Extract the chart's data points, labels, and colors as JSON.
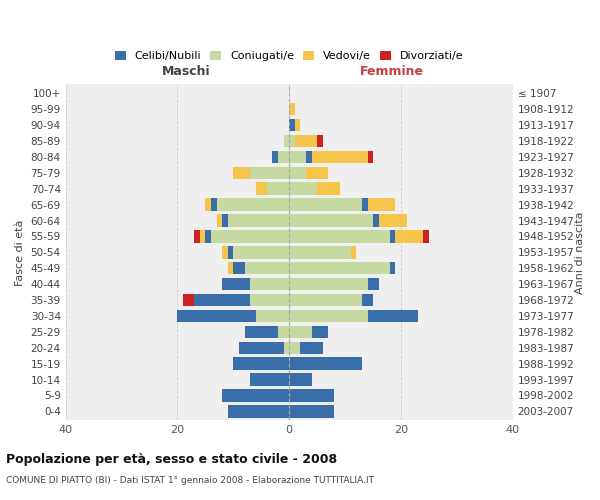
{
  "age_groups": [
    "0-4",
    "5-9",
    "10-14",
    "15-19",
    "20-24",
    "25-29",
    "30-34",
    "35-39",
    "40-44",
    "45-49",
    "50-54",
    "55-59",
    "60-64",
    "65-69",
    "70-74",
    "75-79",
    "80-84",
    "85-89",
    "90-94",
    "95-99",
    "100+"
  ],
  "birth_years": [
    "2003-2007",
    "1998-2002",
    "1993-1997",
    "1988-1992",
    "1983-1987",
    "1978-1982",
    "1973-1977",
    "1968-1972",
    "1963-1967",
    "1958-1962",
    "1953-1957",
    "1948-1952",
    "1943-1947",
    "1938-1942",
    "1933-1937",
    "1928-1932",
    "1923-1927",
    "1918-1922",
    "1913-1917",
    "1908-1912",
    "≤ 1907"
  ],
  "maschi": {
    "celibi": [
      11,
      12,
      7,
      10,
      8,
      6,
      14,
      10,
      5,
      2,
      1,
      1,
      1,
      1,
      0,
      0,
      1,
      0,
      0,
      0,
      0
    ],
    "coniugati": [
      0,
      0,
      0,
      0,
      1,
      2,
      6,
      7,
      7,
      8,
      10,
      14,
      11,
      13,
      4,
      7,
      2,
      1,
      0,
      0,
      0
    ],
    "vedovi": [
      0,
      0,
      0,
      0,
      0,
      0,
      0,
      0,
      0,
      1,
      1,
      1,
      1,
      1,
      2,
      3,
      0,
      0,
      0,
      0,
      0
    ],
    "divorziati": [
      0,
      0,
      0,
      0,
      0,
      0,
      0,
      2,
      0,
      0,
      0,
      1,
      0,
      0,
      0,
      0,
      0,
      0,
      0,
      0,
      0
    ]
  },
  "femmine": {
    "nubili": [
      8,
      8,
      4,
      13,
      4,
      3,
      9,
      2,
      2,
      1,
      0,
      1,
      1,
      1,
      0,
      0,
      1,
      0,
      1,
      0,
      0
    ],
    "coniugate": [
      0,
      0,
      0,
      0,
      2,
      4,
      14,
      13,
      14,
      18,
      11,
      18,
      15,
      13,
      5,
      3,
      3,
      1,
      0,
      0,
      0
    ],
    "vedove": [
      0,
      0,
      0,
      0,
      0,
      0,
      0,
      0,
      0,
      0,
      1,
      5,
      5,
      5,
      4,
      4,
      10,
      4,
      1,
      1,
      0
    ],
    "divorziate": [
      0,
      0,
      0,
      0,
      0,
      0,
      0,
      0,
      0,
      0,
      0,
      1,
      0,
      0,
      0,
      0,
      1,
      1,
      0,
      0,
      0
    ]
  },
  "colors": {
    "celibi_nubili": "#3a6ea8",
    "coniugati": "#c5d9a0",
    "vedovi": "#f5c44a",
    "divorziati": "#cc2222"
  },
  "xlim": 40,
  "xticks": [
    0,
    10,
    20,
    40
  ],
  "title": "Popolazione per età, sesso e stato civile - 2008",
  "subtitle": "COMUNE DI PIATTO (BI) - Dati ISTAT 1° gennaio 2008 - Elaborazione TUTTITALIA.IT",
  "ylabel_left": "Fasce di età",
  "ylabel_right": "Anni di nascita",
  "xlabel_maschi": "Maschi",
  "xlabel_femmine": "Femmine",
  "bg_color": "#ffffff",
  "plot_bg": "#efefef"
}
